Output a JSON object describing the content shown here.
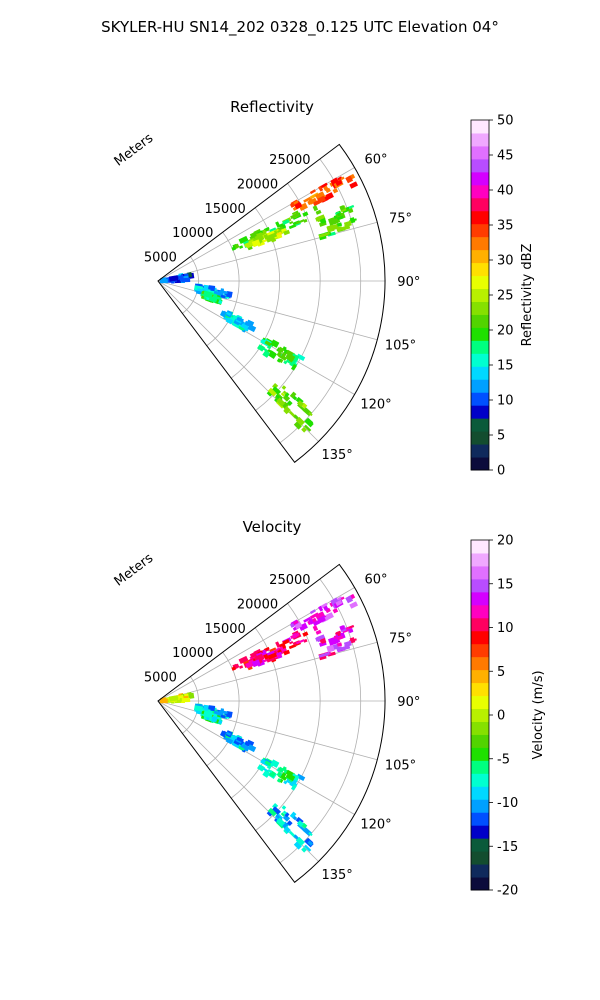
{
  "figure": {
    "suptitle": "SKYLER-HU  SN14_202  0328_0.125 UTC Elevation 04°"
  },
  "chart_data": [
    {
      "type": "heatmap",
      "projection": "polar-sector",
      "title": "Reflectivity",
      "radial_label": "Meters",
      "radial_ticks": [
        5000,
        10000,
        15000,
        20000,
        25000
      ],
      "radial_range": [
        0,
        28000
      ],
      "angular_ticks_deg": [
        60,
        75,
        90,
        105,
        120,
        135
      ],
      "angular_range_deg": [
        53,
        143
      ],
      "grid": true,
      "colorbar": {
        "label": "Reflectivity dBZ",
        "range": [
          0,
          50
        ],
        "ticks": [
          0,
          5,
          10,
          15,
          20,
          25,
          30,
          35,
          40,
          45,
          50
        ],
        "colors": [
          "#0b0b3b",
          "#0f2a5c",
          "#134d2f",
          "#0a5a3a",
          "#0000c8",
          "#0050ff",
          "#00a0ff",
          "#00d8ff",
          "#00ffd0",
          "#00ff80",
          "#1fe000",
          "#52d400",
          "#86e000",
          "#b8f000",
          "#e8ff00",
          "#ffe000",
          "#ffb000",
          "#ff7a00",
          "#ff3c00",
          "#ff0000",
          "#ff0060",
          "#ff00c0",
          "#d400ff",
          "#b84dff",
          "#e070ff",
          "#f0a8ff",
          "#ffe8ff"
        ]
      },
      "echo_regions": [
        {
          "az": [
            60,
            64
          ],
          "r": [
            19000,
            27500
          ],
          "value": 34
        },
        {
          "az": [
            64,
            68
          ],
          "r": [
            10000,
            22000
          ],
          "value": 21
        },
        {
          "az": [
            67,
            70
          ],
          "r": [
            12000,
            17000
          ],
          "value": 25
        },
        {
          "az": [
            68,
            75
          ],
          "r": [
            21000,
            25500
          ],
          "value": 21
        },
        {
          "az": [
            97,
            104
          ],
          "r": [
            5000,
            9000
          ],
          "value": 13
        },
        {
          "az": [
            104,
            110
          ],
          "r": [
            6000,
            8000
          ],
          "value": 19
        },
        {
          "az": [
            114,
            120
          ],
          "r": [
            9000,
            13000
          ],
          "value": 15
        },
        {
          "az": [
            118,
            124
          ],
          "r": [
            15000,
            20000
          ],
          "value": 19
        },
        {
          "az": [
            130,
            136
          ],
          "r": [
            19000,
            26000
          ],
          "value": 22
        },
        {
          "az": [
            78,
            90
          ],
          "r": [
            600,
            4000
          ],
          "value": 10
        }
      ]
    },
    {
      "type": "heatmap",
      "projection": "polar-sector",
      "title": "Velocity",
      "radial_label": "Meters",
      "radial_ticks": [
        5000,
        10000,
        15000,
        20000,
        25000
      ],
      "radial_range": [
        0,
        28000
      ],
      "angular_ticks_deg": [
        60,
        75,
        90,
        105,
        120,
        135
      ],
      "angular_range_deg": [
        53,
        143
      ],
      "grid": true,
      "colorbar": {
        "label": "Velocity (m/s)",
        "range": [
          -20,
          20
        ],
        "ticks": [
          -20,
          -15,
          -10,
          -5,
          0,
          5,
          10,
          15,
          20
        ],
        "colors": [
          "#0b0b3b",
          "#0f2a5c",
          "#134d2f",
          "#0a5a3a",
          "#0000c8",
          "#0050ff",
          "#00a0ff",
          "#00d8ff",
          "#00ffd0",
          "#00ff80",
          "#1fe000",
          "#52d400",
          "#86e000",
          "#b8f000",
          "#e8ff00",
          "#ffe000",
          "#ffb000",
          "#ff7a00",
          "#ff3c00",
          "#ff0000",
          "#ff0060",
          "#ff00c0",
          "#d400ff",
          "#b84dff",
          "#e070ff",
          "#f0a8ff",
          "#ffe8ff"
        ]
      },
      "echo_regions": [
        {
          "az": [
            60,
            64
          ],
          "r": [
            19000,
            27500
          ],
          "value": 14
        },
        {
          "az": [
            64,
            68
          ],
          "r": [
            10000,
            22000
          ],
          "value": 11
        },
        {
          "az": [
            67,
            70
          ],
          "r": [
            12000,
            17000
          ],
          "value": 11
        },
        {
          "az": [
            68,
            75
          ],
          "r": [
            21000,
            25500
          ],
          "value": 13
        },
        {
          "az": [
            97,
            104
          ],
          "r": [
            5000,
            9000
          ],
          "value": -9
        },
        {
          "az": [
            104,
            110
          ],
          "r": [
            6000,
            8000
          ],
          "value": -6
        },
        {
          "az": [
            114,
            120
          ],
          "r": [
            9000,
            13000
          ],
          "value": -9
        },
        {
          "az": [
            118,
            124
          ],
          "r": [
            15000,
            20000
          ],
          "value": -7
        },
        {
          "az": [
            130,
            136
          ],
          "r": [
            19000,
            26000
          ],
          "value": -9
        },
        {
          "az": [
            78,
            90
          ],
          "r": [
            600,
            4000
          ],
          "value": 1
        }
      ]
    }
  ]
}
